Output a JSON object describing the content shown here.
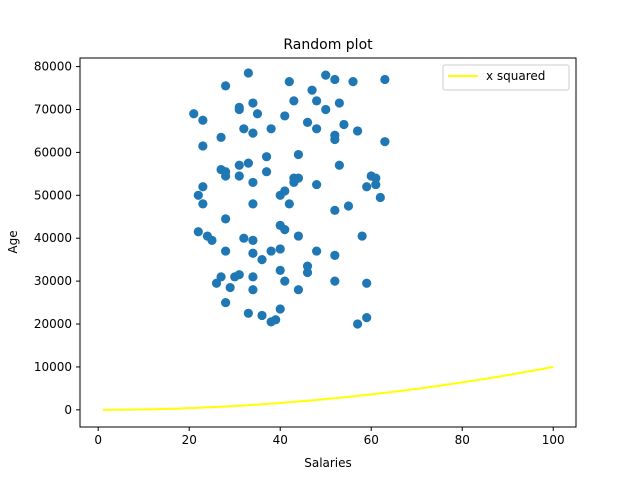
{
  "chart_data": {
    "type": "scatter",
    "title": "Random plot",
    "xlabel": "Salaries",
    "ylabel": "Age",
    "xlim": [
      -4.0,
      105.0
    ],
    "ylim": [
      -4000,
      82000
    ],
    "xticks": [
      0,
      20,
      40,
      60,
      80,
      100
    ],
    "yticks": [
      0,
      10000,
      20000,
      30000,
      40000,
      50000,
      60000,
      70000,
      80000
    ],
    "grid": false,
    "legend": {
      "position": "top-right",
      "entries": [
        "x squared"
      ]
    },
    "series": [
      {
        "kind": "scatter",
        "color": "#1f77b4",
        "points": [
          [
            21,
            69000
          ],
          [
            22,
            41500
          ],
          [
            22,
            50000
          ],
          [
            23,
            67500
          ],
          [
            23,
            61500
          ],
          [
            23,
            52000
          ],
          [
            23,
            48000
          ],
          [
            24,
            40500
          ],
          [
            25,
            39500
          ],
          [
            26,
            29500
          ],
          [
            27,
            63500
          ],
          [
            27,
            56000
          ],
          [
            27,
            31000
          ],
          [
            28,
            75500
          ],
          [
            28,
            55500
          ],
          [
            28,
            54500
          ],
          [
            28,
            44500
          ],
          [
            28,
            37000
          ],
          [
            28,
            25000
          ],
          [
            29,
            28500
          ],
          [
            30,
            31000
          ],
          [
            31,
            70500
          ],
          [
            31,
            70000
          ],
          [
            31,
            57000
          ],
          [
            31,
            54500
          ],
          [
            31,
            31500
          ],
          [
            32,
            65500
          ],
          [
            32,
            40000
          ],
          [
            33,
            78500
          ],
          [
            33,
            57500
          ],
          [
            33,
            22500
          ],
          [
            34,
            71500
          ],
          [
            34,
            64500
          ],
          [
            34,
            53000
          ],
          [
            34,
            48000
          ],
          [
            34,
            39500
          ],
          [
            34,
            36500
          ],
          [
            34,
            31000
          ],
          [
            34,
            28000
          ],
          [
            35,
            69000
          ],
          [
            36,
            35000
          ],
          [
            36,
            22000
          ],
          [
            37,
            59000
          ],
          [
            37,
            55500
          ],
          [
            38,
            65500
          ],
          [
            38,
            37000
          ],
          [
            38,
            20500
          ],
          [
            39,
            21000
          ],
          [
            40,
            50000
          ],
          [
            40,
            43000
          ],
          [
            40,
            37500
          ],
          [
            40,
            32500
          ],
          [
            40,
            23500
          ],
          [
            41,
            68500
          ],
          [
            41,
            51000
          ],
          [
            41,
            42000
          ],
          [
            41,
            30000
          ],
          [
            42,
            76500
          ],
          [
            42,
            48000
          ],
          [
            43,
            72000
          ],
          [
            43,
            54000
          ],
          [
            43,
            53000
          ],
          [
            44,
            59500
          ],
          [
            44,
            54000
          ],
          [
            44,
            40500
          ],
          [
            44,
            28000
          ],
          [
            46,
            67000
          ],
          [
            46,
            33500
          ],
          [
            46,
            32000
          ],
          [
            47,
            74500
          ],
          [
            48,
            72000
          ],
          [
            48,
            65500
          ],
          [
            48,
            52500
          ],
          [
            48,
            37000
          ],
          [
            50,
            78000
          ],
          [
            50,
            70000
          ],
          [
            52,
            77000
          ],
          [
            52,
            64000
          ],
          [
            52,
            63000
          ],
          [
            52,
            46500
          ],
          [
            52,
            36000
          ],
          [
            52,
            30000
          ],
          [
            53,
            71500
          ],
          [
            53,
            57000
          ],
          [
            54,
            66500
          ],
          [
            55,
            47500
          ],
          [
            56,
            76500
          ],
          [
            57,
            65000
          ],
          [
            57,
            20000
          ],
          [
            58,
            40500
          ],
          [
            59,
            52000
          ],
          [
            59,
            29500
          ],
          [
            59,
            21500
          ],
          [
            60,
            54500
          ],
          [
            61,
            54000
          ],
          [
            61,
            52500
          ],
          [
            62,
            49500
          ],
          [
            63,
            77000
          ],
          [
            63,
            62500
          ]
        ]
      },
      {
        "kind": "line",
        "name": "x squared",
        "color": "#ffff00",
        "function": "x^2",
        "x_range": [
          1,
          100
        ]
      }
    ]
  }
}
